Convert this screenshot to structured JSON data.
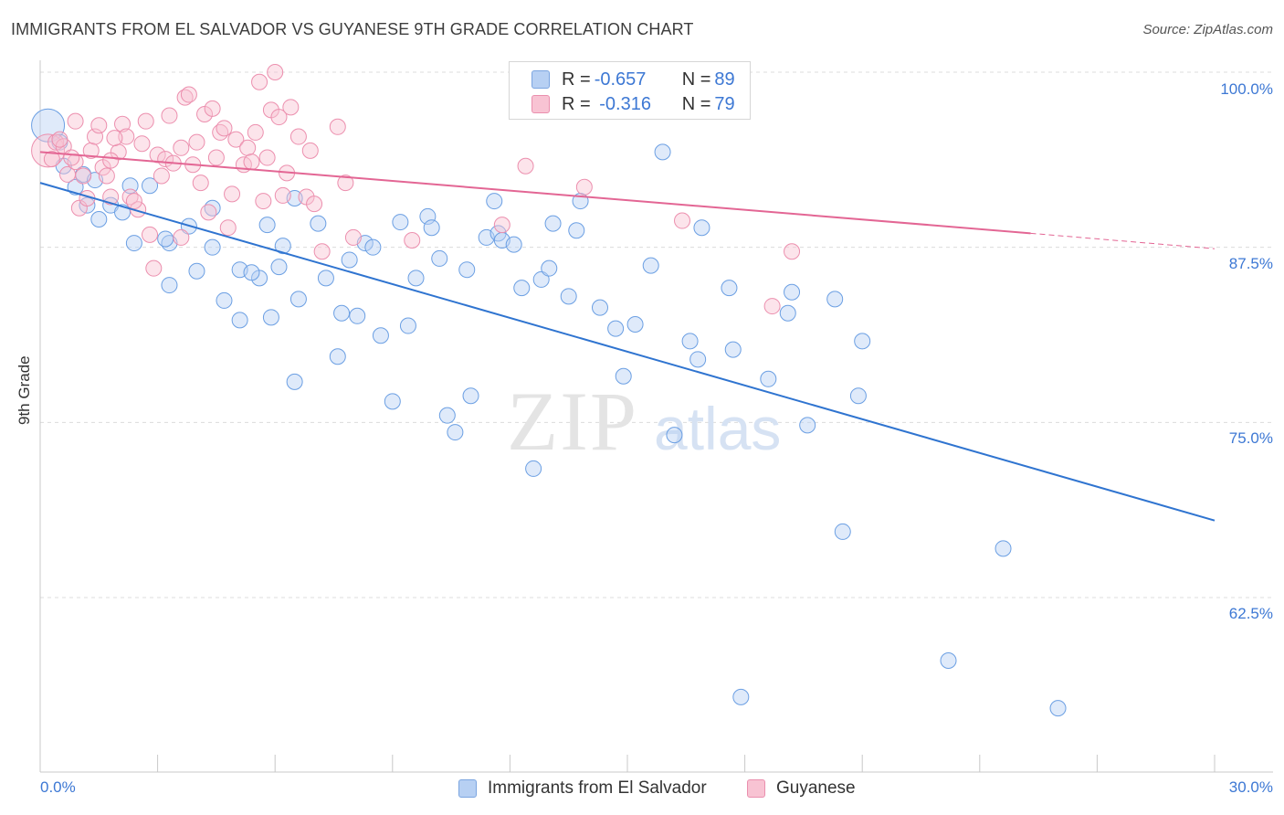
{
  "title": "IMMIGRANTS FROM EL SALVADOR VS GUYANESE 9TH GRADE CORRELATION CHART",
  "source": "Source: ZipAtlas.com",
  "watermark": {
    "zip": "ZIP",
    "atlas": "atlas"
  },
  "legend": {
    "blue": {
      "r_label": "R = ",
      "r_value": "-0.657",
      "n_label": "N = ",
      "n_value": "89"
    },
    "pink": {
      "r_label": "R = ",
      "r_value": " -0.316",
      "n_label": "N = ",
      "n_value": "79"
    }
  },
  "chart_data": {
    "type": "scatter",
    "ylabel": "9th Grade",
    "xlim": [
      0,
      30
    ],
    "ylim": [
      52,
      102
    ],
    "x_tick_labels": [
      "0.0%",
      "30.0%"
    ],
    "y_ticks": [
      100,
      87.5,
      75,
      62.5
    ],
    "y_tick_labels": [
      "100.0%",
      "87.5%",
      "75.0%",
      "62.5%"
    ],
    "grid": "horizontal dashed",
    "legend_position": "top-center",
    "series": [
      {
        "name": "Immigrants from El Salvador",
        "color": "#6b9fe3",
        "trend": {
          "x": [
            0,
            30
          ],
          "y": [
            92.1,
            68.0
          ],
          "color": "#2f74d0"
        },
        "points": [
          [
            0.2,
            96.2,
            "L"
          ],
          [
            0.6,
            93.3
          ],
          [
            0.9,
            91.8
          ],
          [
            1.2,
            90.5
          ],
          [
            1.5,
            89.5
          ],
          [
            1.8,
            90.5
          ],
          [
            2.3,
            91.9
          ],
          [
            1.1,
            92.7
          ],
          [
            2.4,
            87.8
          ],
          [
            2.1,
            90.0
          ],
          [
            3.3,
            87.8
          ],
          [
            3.8,
            89.0
          ],
          [
            4.4,
            90.3
          ],
          [
            4.4,
            87.5
          ],
          [
            3.3,
            84.8
          ],
          [
            4.0,
            85.8
          ],
          [
            4.7,
            83.7
          ],
          [
            5.1,
            85.9
          ],
          [
            5.1,
            82.3
          ],
          [
            5.6,
            85.3
          ],
          [
            5.4,
            85.7
          ],
          [
            5.8,
            89.1
          ],
          [
            5.9,
            82.5
          ],
          [
            6.2,
            87.6
          ],
          [
            6.5,
            91.0
          ],
          [
            6.5,
            77.9
          ],
          [
            6.6,
            83.8
          ],
          [
            7.1,
            89.2
          ],
          [
            7.3,
            85.3
          ],
          [
            7.6,
            79.7
          ],
          [
            7.7,
            82.8
          ],
          [
            7.9,
            86.6
          ],
          [
            8.1,
            82.6
          ],
          [
            8.3,
            87.8
          ],
          [
            8.5,
            87.5
          ],
          [
            8.7,
            81.2
          ],
          [
            9.0,
            76.5
          ],
          [
            9.2,
            89.3
          ],
          [
            9.4,
            81.9
          ],
          [
            9.6,
            85.3
          ],
          [
            9.9,
            89.7
          ],
          [
            10.0,
            88.9
          ],
          [
            10.2,
            86.7
          ],
          [
            10.4,
            75.5
          ],
          [
            10.6,
            74.3
          ],
          [
            10.9,
            85.9
          ],
          [
            11.0,
            76.9
          ],
          [
            11.4,
            88.2
          ],
          [
            11.6,
            90.8
          ],
          [
            11.7,
            88.5
          ],
          [
            11.8,
            88.0
          ],
          [
            12.1,
            87.7
          ],
          [
            12.3,
            84.6
          ],
          [
            12.6,
            71.7
          ],
          [
            12.8,
            85.2
          ],
          [
            13.0,
            86.0
          ],
          [
            13.1,
            89.2
          ],
          [
            13.5,
            84.0
          ],
          [
            13.7,
            88.7
          ],
          [
            13.8,
            90.8
          ],
          [
            14.3,
            83.2
          ],
          [
            14.7,
            81.7
          ],
          [
            14.9,
            78.3
          ],
          [
            15.2,
            82.0
          ],
          [
            15.6,
            86.2
          ],
          [
            15.9,
            94.3
          ],
          [
            16.2,
            74.1
          ],
          [
            16.6,
            80.8
          ],
          [
            16.8,
            79.5
          ],
          [
            16.9,
            88.9
          ],
          [
            17.6,
            84.6
          ],
          [
            17.7,
            80.2
          ],
          [
            18.6,
            78.1
          ],
          [
            19.1,
            82.8
          ],
          [
            19.2,
            84.3
          ],
          [
            19.6,
            74.8
          ],
          [
            20.3,
            83.8
          ],
          [
            20.5,
            67.2
          ],
          [
            20.9,
            76.9
          ],
          [
            21.0,
            80.8
          ],
          [
            23.2,
            58.0
          ],
          [
            24.6,
            66.0
          ],
          [
            17.9,
            55.4
          ],
          [
            26.0,
            54.6
          ],
          [
            0.5,
            95.0
          ],
          [
            1.4,
            92.3
          ],
          [
            3.2,
            88.1
          ],
          [
            2.8,
            91.9
          ],
          [
            6.1,
            86.1
          ]
        ]
      },
      {
        "name": "Guyanese",
        "color": "#ec8fae",
        "trend": {
          "x": [
            0,
            25.3
          ],
          "y": [
            94.3,
            88.5
          ],
          "color": "#e36694"
        },
        "trend_dashed": {
          "x": [
            25.3,
            30
          ],
          "y": [
            88.5,
            87.4
          ]
        },
        "points": [
          [
            0.2,
            94.4,
            "L"
          ],
          [
            0.4,
            95.0
          ],
          [
            0.6,
            94.7
          ],
          [
            0.7,
            92.7
          ],
          [
            0.9,
            93.6
          ],
          [
            1.0,
            90.3
          ],
          [
            1.2,
            91.0
          ],
          [
            1.3,
            94.4
          ],
          [
            1.4,
            95.4
          ],
          [
            1.5,
            96.2
          ],
          [
            1.6,
            93.2
          ],
          [
            1.7,
            92.6
          ],
          [
            1.8,
            91.1
          ],
          [
            2.0,
            94.3
          ],
          [
            2.1,
            96.3
          ],
          [
            2.2,
            95.4
          ],
          [
            2.3,
            91.1
          ],
          [
            2.5,
            90.2
          ],
          [
            2.6,
            94.9
          ],
          [
            2.8,
            88.4
          ],
          [
            2.9,
            86.0
          ],
          [
            3.0,
            94.1
          ],
          [
            3.2,
            93.8
          ],
          [
            3.3,
            96.9
          ],
          [
            3.4,
            93.5
          ],
          [
            3.6,
            94.6
          ],
          [
            3.7,
            98.2
          ],
          [
            3.8,
            98.4
          ],
          [
            3.9,
            93.4
          ],
          [
            4.0,
            95.0
          ],
          [
            4.2,
            97.0
          ],
          [
            4.3,
            90.0
          ],
          [
            4.5,
            93.9
          ],
          [
            4.6,
            95.7
          ],
          [
            4.7,
            96.0
          ],
          [
            4.8,
            88.9
          ],
          [
            5.0,
            95.2
          ],
          [
            5.2,
            93.4
          ],
          [
            5.3,
            94.6
          ],
          [
            5.4,
            93.6
          ],
          [
            5.6,
            99.3
          ],
          [
            5.7,
            90.8
          ],
          [
            5.8,
            93.9
          ],
          [
            5.9,
            97.3
          ],
          [
            6.0,
            100.0
          ],
          [
            6.1,
            96.8
          ],
          [
            6.2,
            91.2
          ],
          [
            6.4,
            97.5
          ],
          [
            6.6,
            95.4
          ],
          [
            6.8,
            91.1
          ],
          [
            6.9,
            94.4
          ],
          [
            7.2,
            87.2
          ],
          [
            7.6,
            96.1
          ],
          [
            7.8,
            92.1
          ],
          [
            8.0,
            88.2
          ],
          [
            9.5,
            88.0
          ],
          [
            11.8,
            89.1
          ],
          [
            12.4,
            93.3
          ],
          [
            13.9,
            91.8
          ],
          [
            16.4,
            89.4
          ],
          [
            18.7,
            83.3
          ],
          [
            19.2,
            87.2
          ],
          [
            0.3,
            93.8
          ],
          [
            0.5,
            95.2
          ],
          [
            0.8,
            93.9
          ],
          [
            1.1,
            92.6
          ],
          [
            1.8,
            93.7
          ],
          [
            2.4,
            90.8
          ],
          [
            3.1,
            92.6
          ],
          [
            3.6,
            88.2
          ],
          [
            4.1,
            92.1
          ],
          [
            4.9,
            91.3
          ],
          [
            5.5,
            95.7
          ],
          [
            6.3,
            92.8
          ],
          [
            7.0,
            90.6
          ],
          [
            2.7,
            96.5
          ],
          [
            1.9,
            95.3
          ],
          [
            0.9,
            96.5
          ],
          [
            4.4,
            97.4
          ]
        ]
      }
    ]
  }
}
